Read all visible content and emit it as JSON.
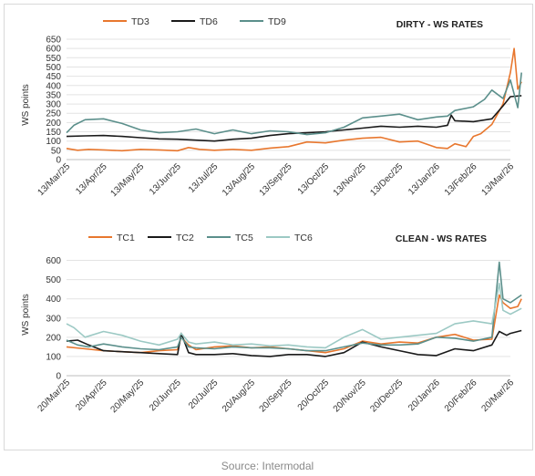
{
  "source": "Source: Intermodal",
  "chart_data": [
    {
      "type": "line",
      "title": "DIRTY - WS RATES",
      "ylabel": "WS points",
      "ylim": [
        0,
        650
      ],
      "yticks": [
        0,
        50,
        100,
        150,
        200,
        250,
        300,
        350,
        400,
        450,
        500,
        550,
        600,
        650
      ],
      "x_tick_labels": [
        "13/Mar/25",
        "13/Apr/25",
        "13/May/25",
        "13/Jun/25",
        "13/Jul/25",
        "13/Aug/25",
        "13/Sep/25",
        "13/Oct/25",
        "13/Nov/25",
        "13/Dec/25",
        "13/Jan/26",
        "13/Feb/26",
        "13/Mar/26"
      ],
      "grid": "horizontal",
      "legend": "top-left",
      "series": [
        {
          "name": "TD3",
          "color": "#e8772e",
          "points": [
            [
              0,
              60
            ],
            [
              0.3,
              50
            ],
            [
              0.6,
              55
            ],
            [
              1,
              52
            ],
            [
              1.5,
              48
            ],
            [
              2,
              55
            ],
            [
              2.5,
              52
            ],
            [
              3,
              48
            ],
            [
              3.3,
              65
            ],
            [
              3.6,
              55
            ],
            [
              4,
              50
            ],
            [
              4.5,
              55
            ],
            [
              5,
              50
            ],
            [
              5.5,
              62
            ],
            [
              6,
              70
            ],
            [
              6.5,
              95
            ],
            [
              7,
              90
            ],
            [
              7.5,
              105
            ],
            [
              8,
              115
            ],
            [
              8.5,
              120
            ],
            [
              9,
              95
            ],
            [
              9.5,
              100
            ],
            [
              10,
              65
            ],
            [
              10.3,
              60
            ],
            [
              10.5,
              85
            ],
            [
              10.8,
              70
            ],
            [
              11,
              125
            ],
            [
              11.2,
              140
            ],
            [
              11.5,
              190
            ],
            [
              11.8,
              300
            ],
            [
              12,
              470
            ],
            [
              12.1,
              600
            ],
            [
              12.2,
              380
            ],
            [
              12.3,
              420
            ]
          ]
        },
        {
          "name": "TD6",
          "color": "#1a1a1a",
          "points": [
            [
              0,
              125
            ],
            [
              0.5,
              128
            ],
            [
              1,
              130
            ],
            [
              1.5,
              125
            ],
            [
              2,
              118
            ],
            [
              2.5,
              112
            ],
            [
              3,
              110
            ],
            [
              3.5,
              105
            ],
            [
              4,
              100
            ],
            [
              4.5,
              110
            ],
            [
              5,
              115
            ],
            [
              5.5,
              130
            ],
            [
              6,
              140
            ],
            [
              6.5,
              145
            ],
            [
              7,
              150
            ],
            [
              7.5,
              160
            ],
            [
              8,
              170
            ],
            [
              8.5,
              180
            ],
            [
              9,
              175
            ],
            [
              9.5,
              180
            ],
            [
              10,
              175
            ],
            [
              10.3,
              185
            ],
            [
              10.4,
              240
            ],
            [
              10.5,
              210
            ],
            [
              11,
              205
            ],
            [
              11.5,
              220
            ],
            [
              11.8,
              290
            ],
            [
              12,
              340
            ],
            [
              12.3,
              345
            ]
          ]
        },
        {
          "name": "TD9",
          "color": "#5b8f8b",
          "points": [
            [
              0,
              145
            ],
            [
              0.2,
              185
            ],
            [
              0.5,
              215
            ],
            [
              1,
              220
            ],
            [
              1.5,
              195
            ],
            [
              2,
              160
            ],
            [
              2.5,
              145
            ],
            [
              3,
              150
            ],
            [
              3.5,
              165
            ],
            [
              4,
              140
            ],
            [
              4.5,
              160
            ],
            [
              5,
              140
            ],
            [
              5.5,
              155
            ],
            [
              6,
              150
            ],
            [
              6.5,
              135
            ],
            [
              7,
              145
            ],
            [
              7.5,
              175
            ],
            [
              8,
              225
            ],
            [
              8.5,
              235
            ],
            [
              9,
              245
            ],
            [
              9.5,
              215
            ],
            [
              10,
              230
            ],
            [
              10.3,
              235
            ],
            [
              10.5,
              265
            ],
            [
              11,
              285
            ],
            [
              11.3,
              325
            ],
            [
              11.5,
              375
            ],
            [
              11.8,
              330
            ],
            [
              12,
              430
            ],
            [
              12.2,
              280
            ],
            [
              12.3,
              470
            ]
          ]
        }
      ]
    },
    {
      "type": "line",
      "title": "CLEAN - WS RATES",
      "ylabel": "WS points",
      "ylim": [
        0,
        650
      ],
      "yticks": [
        0,
        100,
        200,
        300,
        400,
        500,
        600
      ],
      "x_tick_labels": [
        "20/Mar/25",
        "20/Apr/25",
        "20/May/25",
        "20/Jun/25",
        "20/Jul/25",
        "20/Aug/25",
        "20/Sep/25",
        "20/Oct/25",
        "20/Nov/25",
        "20/Dec/25",
        "20/Jan/26",
        "20/Feb/26",
        "20/Mar/26"
      ],
      "grid": "horizontal",
      "legend": "top-left",
      "series": [
        {
          "name": "TC1",
          "color": "#e8772e",
          "points": [
            [
              0,
              150
            ],
            [
              0.5,
              140
            ],
            [
              1,
              130
            ],
            [
              1.5,
              125
            ],
            [
              2,
              120
            ],
            [
              2.5,
              130
            ],
            [
              3,
              135
            ],
            [
              3.1,
              200
            ],
            [
              3.3,
              160
            ],
            [
              3.5,
              135
            ],
            [
              4,
              150
            ],
            [
              4.5,
              155
            ],
            [
              5,
              145
            ],
            [
              5.5,
              150
            ],
            [
              6,
              140
            ],
            [
              6.5,
              130
            ],
            [
              7,
              120
            ],
            [
              7.5,
              140
            ],
            [
              8,
              180
            ],
            [
              8.5,
              165
            ],
            [
              9,
              175
            ],
            [
              9.5,
              170
            ],
            [
              10,
              200
            ],
            [
              10.5,
              215
            ],
            [
              11,
              185
            ],
            [
              11.5,
              190
            ],
            [
              11.7,
              420
            ],
            [
              11.8,
              380
            ],
            [
              12,
              350
            ],
            [
              12.2,
              360
            ],
            [
              12.3,
              400
            ]
          ]
        },
        {
          "name": "TC2",
          "color": "#1a1a1a",
          "points": [
            [
              0,
              180
            ],
            [
              0.3,
              185
            ],
            [
              0.6,
              160
            ],
            [
              1,
              130
            ],
            [
              1.5,
              125
            ],
            [
              2,
              120
            ],
            [
              2.5,
              115
            ],
            [
              3,
              110
            ],
            [
              3.1,
              220
            ],
            [
              3.3,
              120
            ],
            [
              3.5,
              110
            ],
            [
              4,
              110
            ],
            [
              4.5,
              115
            ],
            [
              5,
              105
            ],
            [
              5.5,
              100
            ],
            [
              6,
              110
            ],
            [
              6.5,
              110
            ],
            [
              7,
              100
            ],
            [
              7.5,
              120
            ],
            [
              8,
              175
            ],
            [
              8.5,
              150
            ],
            [
              9,
              130
            ],
            [
              9.5,
              110
            ],
            [
              10,
              105
            ],
            [
              10.5,
              140
            ],
            [
              11,
              130
            ],
            [
              11.5,
              160
            ],
            [
              11.7,
              230
            ],
            [
              11.9,
              210
            ],
            [
              12,
              220
            ],
            [
              12.3,
              235
            ]
          ]
        },
        {
          "name": "TC5",
          "color": "#5b8f8b",
          "points": [
            [
              0,
              185
            ],
            [
              0.3,
              160
            ],
            [
              0.6,
              150
            ],
            [
              1,
              165
            ],
            [
              1.5,
              150
            ],
            [
              2,
              140
            ],
            [
              2.5,
              135
            ],
            [
              3,
              150
            ],
            [
              3.1,
              200
            ],
            [
              3.3,
              150
            ],
            [
              3.5,
              145
            ],
            [
              4,
              140
            ],
            [
              4.5,
              150
            ],
            [
              5,
              145
            ],
            [
              5.5,
              145
            ],
            [
              6,
              140
            ],
            [
              6.5,
              130
            ],
            [
              7,
              130
            ],
            [
              7.5,
              150
            ],
            [
              8,
              170
            ],
            [
              8.5,
              160
            ],
            [
              9,
              160
            ],
            [
              9.5,
              165
            ],
            [
              10,
              200
            ],
            [
              10.5,
              195
            ],
            [
              11,
              180
            ],
            [
              11.5,
              200
            ],
            [
              11.7,
              590
            ],
            [
              11.8,
              400
            ],
            [
              12,
              380
            ],
            [
              12.3,
              420
            ]
          ]
        },
        {
          "name": "TC6",
          "color": "#9cc9c4",
          "points": [
            [
              0,
              270
            ],
            [
              0.2,
              250
            ],
            [
              0.5,
              200
            ],
            [
              1,
              230
            ],
            [
              1.5,
              210
            ],
            [
              2,
              180
            ],
            [
              2.5,
              160
            ],
            [
              3,
              190
            ],
            [
              3.1,
              220
            ],
            [
              3.3,
              175
            ],
            [
              3.5,
              165
            ],
            [
              4,
              175
            ],
            [
              4.5,
              160
            ],
            [
              5,
              165
            ],
            [
              5.5,
              155
            ],
            [
              6,
              160
            ],
            [
              6.5,
              150
            ],
            [
              7,
              145
            ],
            [
              7.5,
              200
            ],
            [
              8,
              240
            ],
            [
              8.5,
              190
            ],
            [
              9,
              200
            ],
            [
              9.5,
              210
            ],
            [
              10,
              220
            ],
            [
              10.5,
              270
            ],
            [
              11,
              285
            ],
            [
              11.5,
              270
            ],
            [
              11.7,
              480
            ],
            [
              11.8,
              340
            ],
            [
              12,
              320
            ],
            [
              12.3,
              350
            ]
          ]
        }
      ]
    }
  ]
}
